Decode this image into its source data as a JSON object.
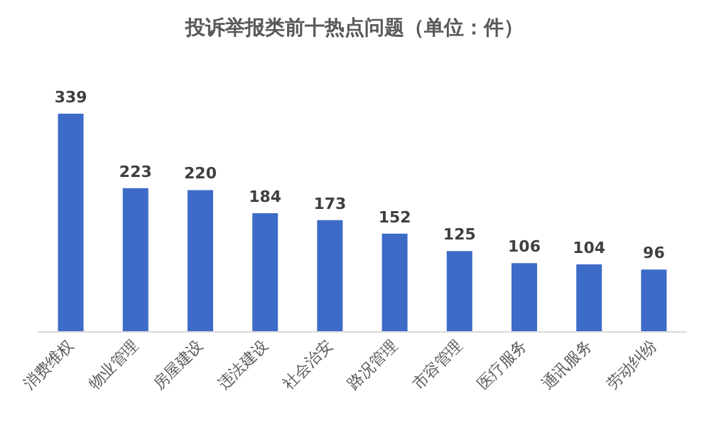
{
  "chart_data": {
    "type": "bar",
    "title": "投诉举报类前十热点问题（单位：件）",
    "categories": [
      "消费维权",
      "物业管理",
      "房屋建设",
      "违法建设",
      "社会治安",
      "路况管理",
      "市容管理",
      "医疗服务",
      "通讯服务",
      "劳动纠纷"
    ],
    "values": [
      339,
      223,
      220,
      184,
      173,
      152,
      125,
      106,
      104,
      96
    ],
    "color": "#3d6bc8",
    "data_labels": true
  }
}
